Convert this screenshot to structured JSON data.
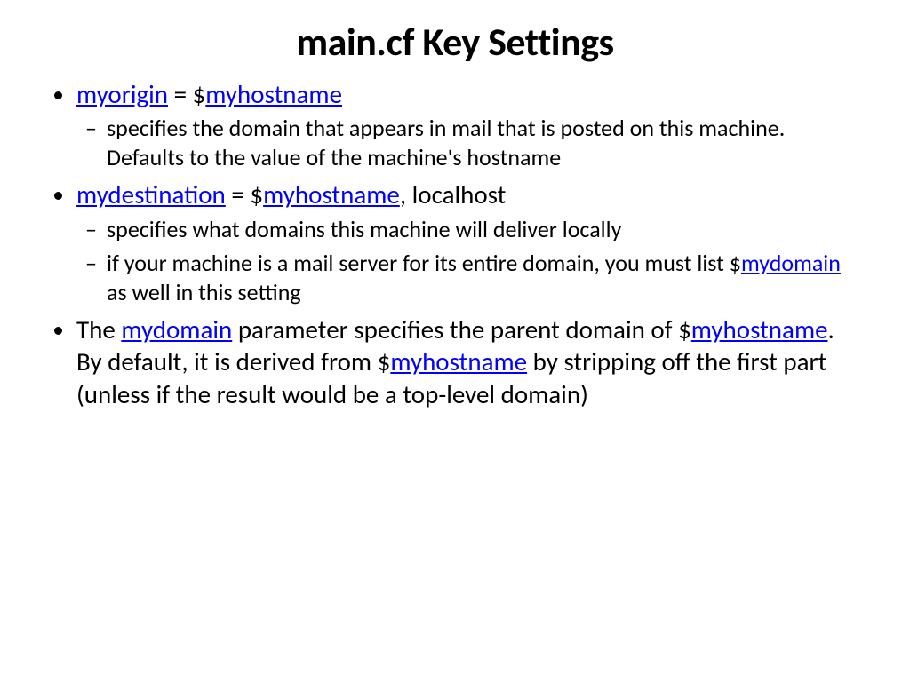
{
  "colors": {
    "background": "#ffffff",
    "text": "#000000",
    "link": "#0000ff"
  },
  "typography": {
    "title_fontsize": 44,
    "title_fontweight": 700,
    "body_fontsize": 29,
    "sub_fontsize": 26,
    "font_family": "Calibri"
  },
  "title": "main.cf Key Settings",
  "item1": {
    "link1": "myorigin",
    "mid": " = $",
    "link2": "myhostname",
    "sub1": "specifies the domain that appears in mail that is posted on this machine. Defaults to the value of the machine's hostname"
  },
  "item2": {
    "link1": "mydestination",
    "mid": " = $",
    "link2": "myhostname",
    "tail": ", localhost",
    "sub1": "specifies what domains this machine will deliver locally",
    "sub2_pre": "if your machine is a mail server for its entire domain, you must list $",
    "sub2_link": "mydomain",
    "sub2_post": " as well in this setting"
  },
  "item3": {
    "t1": "The ",
    "l1": "mydomain",
    "t2": " parameter specifies the parent domain of $",
    "l2": "myhostname",
    "t3": ". By default, it is derived from $",
    "l3": "myhostname",
    "t4": " by stripping off the first part (unless if the result would be a top-level domain)"
  }
}
